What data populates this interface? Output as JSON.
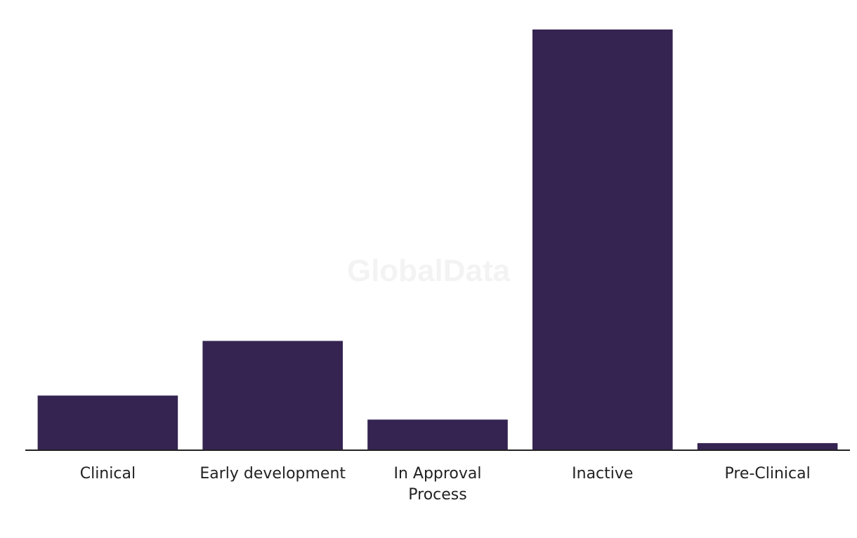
{
  "chart_data": {
    "type": "bar",
    "categories": [
      "Clinical",
      "Early development",
      "In Approval Process",
      "Inactive",
      "Pre-Clinical"
    ],
    "category_label_lines": [
      [
        "Clinical"
      ],
      [
        "Early development"
      ],
      [
        "In Approval",
        "Process"
      ],
      [
        "Inactive"
      ],
      [
        "Pre-Clinical"
      ]
    ],
    "values": [
      10,
      20,
      5.6,
      77,
      1.3
    ],
    "ylim": [
      0,
      77
    ],
    "bar_color": "#352452",
    "axis_color": "#222222",
    "title": "",
    "xlabel": "",
    "ylabel": "",
    "grid": false,
    "legend": "none"
  },
  "watermark": "GlobalData"
}
